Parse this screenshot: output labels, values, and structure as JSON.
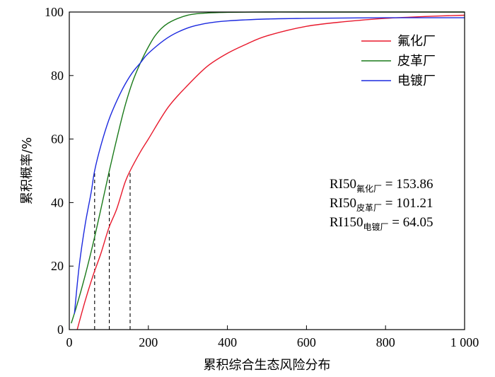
{
  "chart_data": {
    "type": "line",
    "xlabel": "累积综合生态风险分布",
    "ylabel": "累积概率/%",
    "xlim": [
      0,
      1000
    ],
    "ylim": [
      0,
      100
    ],
    "xticks": [
      {
        "value": 0,
        "label": "0"
      },
      {
        "value": 200,
        "label": "200"
      },
      {
        "value": 400,
        "label": "400"
      },
      {
        "value": 600,
        "label": "600"
      },
      {
        "value": 800,
        "label": "800"
      },
      {
        "value": 1000,
        "label": "1 000"
      }
    ],
    "yticks": [
      {
        "value": 0,
        "label": "0"
      },
      {
        "value": 20,
        "label": "20"
      },
      {
        "value": 40,
        "label": "40"
      },
      {
        "value": 60,
        "label": "60"
      },
      {
        "value": 80,
        "label": "80"
      },
      {
        "value": 100,
        "label": "100"
      }
    ],
    "grid": false,
    "legend_position": "top-right",
    "series": [
      {
        "name": "氟化厂",
        "color": "#e8192c",
        "x": [
          20,
          40,
          60,
          80,
          100,
          120,
          140,
          153.86,
          180,
          200,
          250,
          300,
          350,
          400,
          450,
          500,
          600,
          700,
          800,
          900,
          1000
        ],
        "y": [
          0,
          9,
          17,
          24,
          32,
          38,
          46,
          50,
          56,
          60,
          70,
          77,
          83,
          87,
          90,
          92.5,
          95.5,
          97,
          98,
          98.6,
          99
        ]
      },
      {
        "name": "皮革厂",
        "color": "#1a7a1a",
        "x": [
          5,
          20,
          40,
          60,
          80,
          101.21,
          120,
          140,
          160,
          180,
          200,
          220,
          250,
          300,
          350,
          400,
          500,
          600,
          800,
          1000
        ],
        "y": [
          2,
          8,
          17,
          27,
          38,
          50,
          60,
          70,
          78,
          84,
          89,
          93,
          96.5,
          99,
          99.7,
          99.9,
          100,
          100,
          100,
          100
        ]
      },
      {
        "name": "电镀厂",
        "color": "#1c2adf",
        "x": [
          13,
          25,
          40,
          55,
          64.05,
          80,
          100,
          120,
          140,
          160,
          180,
          200,
          250,
          300,
          350,
          400,
          500,
          600,
          800,
          1000
        ],
        "y": [
          5,
          20,
          33,
          43,
          50,
          58,
          66,
          72,
          77,
          81,
          84,
          87,
          92,
          95,
          96.5,
          97.2,
          97.8,
          98,
          98.2,
          98.2
        ]
      }
    ],
    "reference_lines": [
      {
        "x": 64.05,
        "y": 50
      },
      {
        "x": 101.21,
        "y": 50
      },
      {
        "x": 153.86,
        "y": 50
      }
    ],
    "annotations": [
      {
        "main": "RI50",
        "sub": "氟化厂",
        "value": " = 153.86"
      },
      {
        "main": "RI50",
        "sub": "皮革厂",
        "value": " = 101.21"
      },
      {
        "main": "RI150",
        "sub": "电镀厂",
        "value": " = 64.05"
      }
    ]
  }
}
